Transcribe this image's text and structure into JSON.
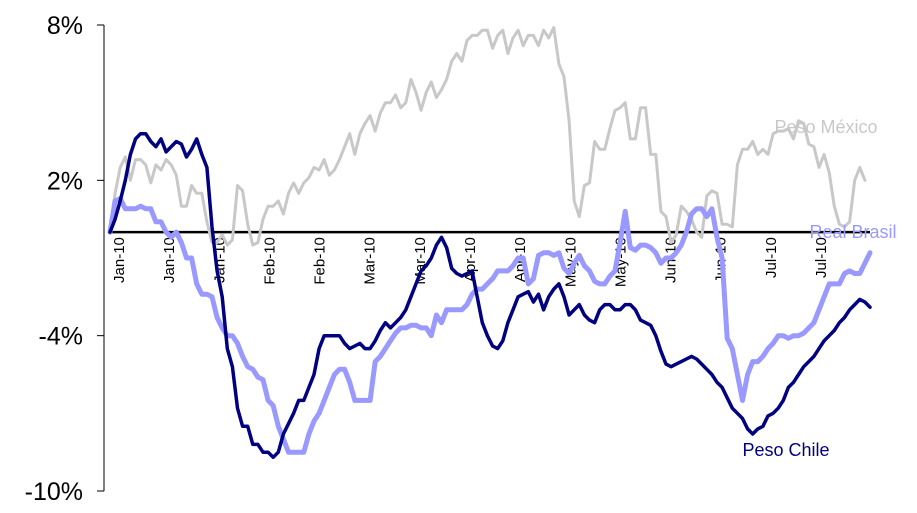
{
  "chart_data": {
    "type": "line",
    "y_axis": {
      "ticks": [
        8,
        2,
        -4,
        -10
      ],
      "tick_labels": [
        "8%",
        "2%",
        "-4%",
        "-10%"
      ],
      "ylim": [
        -10,
        8
      ]
    },
    "x_axis": {
      "tick_labels": [
        "Jan-10",
        "Jan-10",
        "Jan-10",
        "Feb-10",
        "Feb-10",
        "Mar-10",
        "Mar-10",
        "Apr-10",
        "Apr-10",
        "May-10",
        "May-10",
        "Jun-10",
        "Jun-10",
        "Jul-10",
        "Jul-10"
      ],
      "xlim": [
        0,
        149
      ]
    },
    "zero_line": true,
    "grid": false,
    "series": [
      {
        "name": "Peso México",
        "color": "#c8c8c8",
        "values": [
          0.1,
          1.5,
          2.5,
          2.9,
          2.0,
          2.8,
          2.8,
          2.6,
          1.9,
          2.6,
          2.4,
          2.8,
          2.6,
          2.2,
          1.0,
          1.0,
          1.8,
          1.5,
          1.5,
          0.4,
          -0.4,
          -0.4,
          -0.1,
          -0.5,
          -0.3,
          1.8,
          1.6,
          0.3,
          -0.5,
          -0.4,
          0.5,
          1.0,
          1.0,
          1.2,
          0.7,
          1.5,
          1.9,
          1.5,
          1.9,
          2.1,
          2.5,
          2.4,
          2.8,
          2.2,
          2.4,
          2.8,
          3.3,
          3.8,
          3.0,
          3.8,
          4.2,
          4.5,
          3.9,
          4.6,
          5.0,
          5.0,
          5.3,
          4.8,
          5.0,
          5.9,
          5.4,
          4.7,
          5.4,
          5.8,
          5.2,
          5.5,
          5.9,
          6.6,
          6.9,
          6.6,
          7.4,
          7.6,
          7.6,
          7.8,
          7.8,
          7.1,
          7.6,
          7.8,
          6.9,
          7.5,
          7.8,
          7.2,
          7.6,
          7.6,
          7.2,
          7.8,
          7.5,
          7.9,
          6.5,
          6.0,
          4.3,
          1.2,
          0.6,
          1.8,
          1.9,
          3.5,
          3.2,
          3.2,
          4.0,
          4.7,
          4.8,
          5.0,
          3.6,
          3.6,
          4.8,
          4.8,
          3.0,
          3.0,
          0.8,
          0.6,
          -0.4,
          -0.1,
          1.0,
          0.8,
          0.5,
          0.0,
          -0.2,
          1.4,
          1.6,
          1.5,
          0.3,
          0.3,
          0.2,
          2.6,
          3.2,
          3.2,
          3.5,
          3.0,
          3.2,
          3.0,
          3.8,
          3.9,
          3.9,
          4.0,
          3.6,
          4.3,
          4.2,
          3.4,
          3.3,
          2.5,
          3.0,
          2.3,
          1.0,
          0.3,
          0.2,
          0.4,
          2.0,
          2.5,
          2.0
        ]
      },
      {
        "name": "Real Brasil",
        "color": "#9999ff",
        "values": [
          0.0,
          1.2,
          1.3,
          0.9,
          0.9,
          0.9,
          1.0,
          0.9,
          0.9,
          0.4,
          0.4,
          0.0,
          -0.2,
          0.0,
          -0.4,
          -1.0,
          -1.0,
          -2.0,
          -2.4,
          -2.4,
          -2.5,
          -3.3,
          -3.7,
          -4.0,
          -4.0,
          -4.3,
          -4.8,
          -5.2,
          -5.3,
          -5.6,
          -5.7,
          -6.5,
          -6.7,
          -7.5,
          -8.0,
          -8.5,
          -8.5,
          -8.5,
          -8.5,
          -7.8,
          -7.3,
          -7.0,
          -6.5,
          -6.0,
          -5.5,
          -5.3,
          -5.3,
          -5.8,
          -6.5,
          -6.5,
          -6.5,
          -6.5,
          -5.0,
          -4.8,
          -4.5,
          -4.2,
          -3.9,
          -3.7,
          -3.7,
          -3.6,
          -3.6,
          -3.7,
          -3.7,
          -4.0,
          -3.2,
          -3.5,
          -3.0,
          -3.0,
          -3.0,
          -3.0,
          -2.8,
          -2.4,
          -2.2,
          -2.2,
          -2.0,
          -1.8,
          -1.5,
          -1.5,
          -1.5,
          -1.3,
          -1.0,
          -1.0,
          -2.0,
          -1.8,
          -0.9,
          -0.8,
          -0.8,
          -0.9,
          -0.8,
          -1.4,
          -1.6,
          -1.2,
          -0.9,
          -1.3,
          -1.5,
          -1.9,
          -2.0,
          -2.0,
          -1.7,
          -1.5,
          -0.4,
          0.8,
          -0.6,
          -0.7,
          -0.5,
          -0.5,
          -0.6,
          -0.8,
          -1.2,
          -1.0,
          -1.0,
          -0.8,
          -0.5,
          0.0,
          0.7,
          0.9,
          0.9,
          0.6,
          0.9,
          -0.2,
          -1.0,
          -4.1,
          -4.5,
          -5.5,
          -6.5,
          -5.5,
          -5.0,
          -5.0,
          -4.8,
          -4.5,
          -4.3,
          -4.0,
          -4.0,
          -4.1,
          -4.0,
          -4.0,
          -3.9,
          -3.7,
          -3.5,
          -3.0,
          -2.5,
          -2.0,
          -2.0,
          -2.0,
          -1.6,
          -1.5,
          -1.6,
          -1.6,
          -1.2,
          -0.8
        ]
      },
      {
        "name": "Peso Chile",
        "color": "#000080",
        "values": [
          0.0,
          0.5,
          1.2,
          2.0,
          3.0,
          3.6,
          3.8,
          3.8,
          3.5,
          3.3,
          3.6,
          3.1,
          3.3,
          3.5,
          3.4,
          2.9,
          3.2,
          3.6,
          3.0,
          2.5,
          0.2,
          -1.5,
          -2.5,
          -4.5,
          -5.2,
          -6.8,
          -7.5,
          -7.5,
          -8.2,
          -8.2,
          -8.5,
          -8.5,
          -8.7,
          -8.5,
          -7.8,
          -7.4,
          -7.0,
          -6.5,
          -6.5,
          -6.0,
          -5.5,
          -4.5,
          -4.0,
          -4.0,
          -4.0,
          -4.0,
          -4.3,
          -4.5,
          -4.4,
          -4.3,
          -4.5,
          -4.5,
          -4.2,
          -3.8,
          -3.5,
          -3.7,
          -3.5,
          -3.3,
          -3.0,
          -2.5,
          -2.0,
          -1.5,
          -1.3,
          -1.0,
          -0.5,
          -0.2,
          -0.6,
          -1.4,
          -1.6,
          -1.7,
          -1.6,
          -1.5,
          -2.5,
          -3.5,
          -4.0,
          -4.4,
          -4.5,
          -4.2,
          -3.5,
          -3.0,
          -2.5,
          -2.4,
          -2.3,
          -2.7,
          -2.4,
          -3.0,
          -2.5,
          -2.2,
          -2.0,
          -2.5,
          -3.2,
          -3.0,
          -2.8,
          -3.2,
          -3.4,
          -3.5,
          -3.0,
          -2.8,
          -2.8,
          -3.0,
          -3.0,
          -2.8,
          -2.8,
          -3.0,
          -3.4,
          -3.5,
          -3.6,
          -4.0,
          -4.6,
          -5.1,
          -5.2,
          -5.1,
          -5.0,
          -4.9,
          -4.8,
          -4.9,
          -5.1,
          -5.3,
          -5.5,
          -5.8,
          -6.0,
          -6.4,
          -6.8,
          -7.0,
          -7.2,
          -7.6,
          -7.8,
          -7.6,
          -7.5,
          -7.1,
          -7.0,
          -6.8,
          -6.5,
          -6.0,
          -5.8,
          -5.5,
          -5.2,
          -5.0,
          -4.8,
          -4.5,
          -4.2,
          -4.0,
          -3.8,
          -3.5,
          -3.3,
          -3.0,
          -2.8,
          -2.6,
          -2.7,
          -2.9
        ]
      }
    ]
  }
}
